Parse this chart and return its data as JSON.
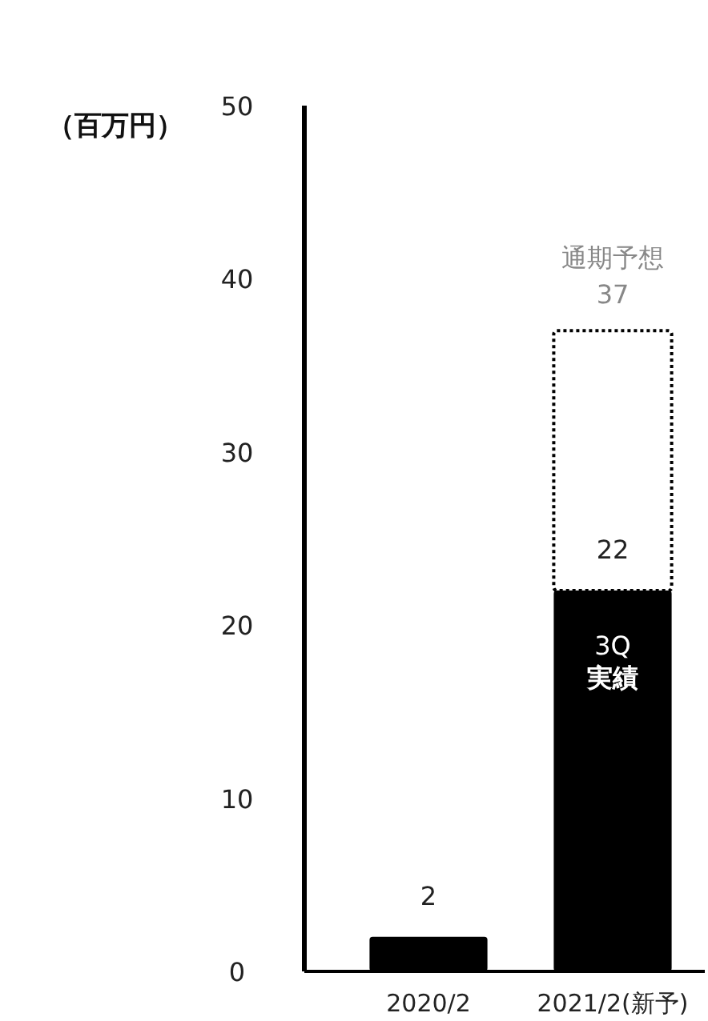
{
  "chart_data": {
    "type": "bar",
    "stacked": true,
    "ylabel": "（百万円）",
    "categories": [
      "2020/2",
      "2021/2(新予)"
    ],
    "series": [
      {
        "name": "3Q実績",
        "color": "#000000",
        "values": [
          2,
          22
        ],
        "value_labels": [
          "2",
          "22"
        ]
      },
      {
        "name": "通期予想",
        "color": "#ffffff",
        "line_style": "dotted",
        "values": [
          null,
          15
        ]
      }
    ],
    "totals": [
      null,
      "37"
    ],
    "ylim": [
      0,
      50
    ],
    "yticks": [
      0,
      10,
      20,
      30,
      40,
      50
    ],
    "grid": false
  }
}
